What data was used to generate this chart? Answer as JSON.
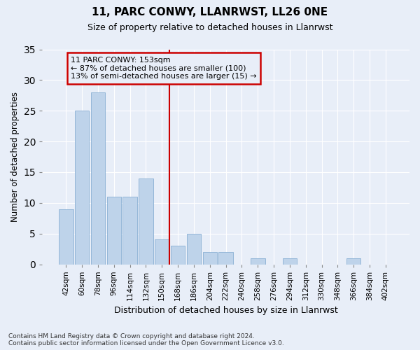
{
  "title": "11, PARC CONWY, LLANRWST, LL26 0NE",
  "subtitle": "Size of property relative to detached houses in Llanrwst",
  "xlabel": "Distribution of detached houses by size in Llanrwst",
  "ylabel": "Number of detached properties",
  "footer_line1": "Contains HM Land Registry data © Crown copyright and database right 2024.",
  "footer_line2": "Contains public sector information licensed under the Open Government Licence v3.0.",
  "bin_labels": [
    "42sqm",
    "60sqm",
    "78sqm",
    "96sqm",
    "114sqm",
    "132sqm",
    "150sqm",
    "168sqm",
    "186sqm",
    "204sqm",
    "222sqm",
    "240sqm",
    "258sqm",
    "276sqm",
    "294sqm",
    "312sqm",
    "330sqm",
    "348sqm",
    "366sqm",
    "384sqm",
    "402sqm"
  ],
  "bin_values": [
    9,
    25,
    28,
    11,
    11,
    14,
    4,
    3,
    5,
    2,
    2,
    0,
    1,
    0,
    1,
    0,
    0,
    0,
    1,
    0,
    0
  ],
  "bar_color": "#bed3ea",
  "bar_edge_color": "#8ab0d4",
  "background_color": "#e8eef8",
  "grid_color": "#ffffff",
  "vline_index": 6,
  "vline_color": "#cc0000",
  "annotation_line1": "11 PARC CONWY: 153sqm",
  "annotation_line2": "← 87% of detached houses are smaller (100)",
  "annotation_line3": "13% of semi-detached houses are larger (15) →",
  "annotation_box_color": "#cc0000",
  "ylim": [
    0,
    35
  ],
  "yticks": [
    0,
    5,
    10,
    15,
    20,
    25,
    30,
    35
  ]
}
